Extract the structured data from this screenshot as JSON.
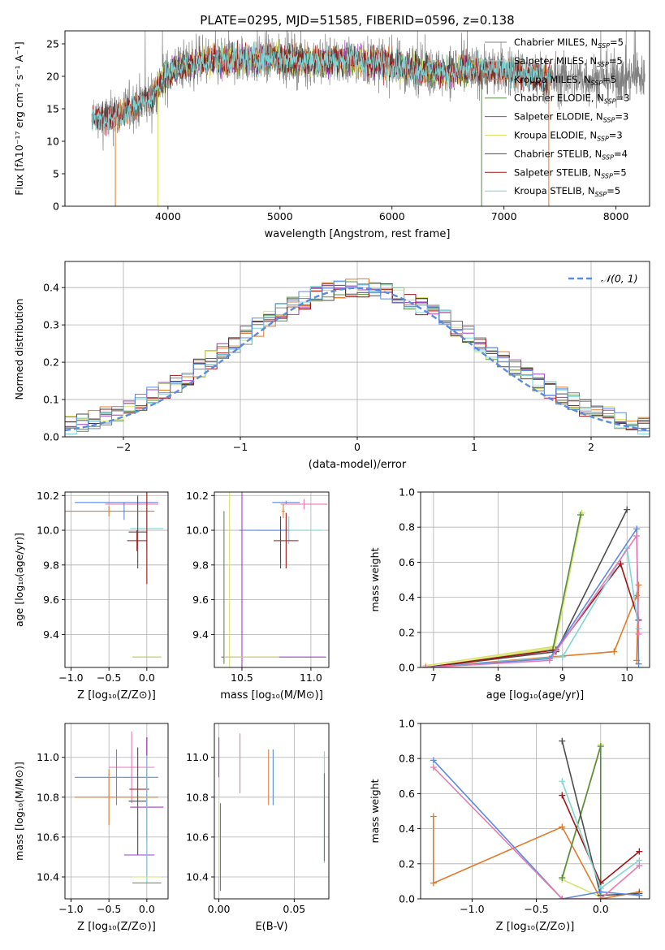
{
  "colors": {
    "chabrier_miles": "#808080",
    "salpeter_miles": "#c2c2c2",
    "kroupa_miles": "#e07b2b",
    "chabrier_elodie": "#5a8a4a",
    "salpeter_elodie": "#a23cc7",
    "kroupa_elodie": "#d7e36a",
    "chabrier_stelib": "#4d4d4d",
    "salpeter_stelib": "#a01515",
    "kroupa_stelib": "#7fd6d6",
    "blue": "#5b8bdf",
    "pink": "#e77ab5",
    "normal": "#5b8bdf"
  },
  "chart_data": [
    {
      "id": "spectrum",
      "type": "line",
      "title": "PLATE=0295, MJD=51585, FIBERID=0596, z=0.138",
      "xlabel": "wavelength [Angstrom, rest frame]",
      "ylabel": "Flux [fλ10⁻¹⁷ erg cm⁻² s⁻¹ A⁻¹]",
      "xlim": [
        3080,
        8300
      ],
      "ylim": [
        0,
        27
      ],
      "xticks": [
        "4000",
        "5000",
        "6000",
        "7000",
        "8000"
      ],
      "yticks": [
        "0",
        "5",
        "10",
        "15",
        "20",
        "25"
      ],
      "legend_position": "top-right",
      "legend": [
        {
          "label": "Chabrier MILES, N",
          "sub": "SSP",
          "tail": "=5",
          "color": "#808080"
        },
        {
          "label": "Salpeter MILES, N",
          "sub": "SSP",
          "tail": "=5",
          "color": "#c2c2c2"
        },
        {
          "label": "Kroupa MILES, N",
          "sub": "SSP",
          "tail": "=5",
          "color": "#e07b2b"
        },
        {
          "label": "Chabrier ELODIE, N",
          "sub": "SSP",
          "tail": "=3",
          "color": "#5a8a4a"
        },
        {
          "label": "Salpeter ELODIE, N",
          "sub": "SSP",
          "tail": "=3",
          "color": "#a23cc7"
        },
        {
          "label": "Kroupa ELODIE, N",
          "sub": "SSP",
          "tail": "=3",
          "color": "#d7e36a"
        },
        {
          "label": "Chabrier STELIB, N",
          "sub": "SSP",
          "tail": "=4",
          "color": "#4d4d4d"
        },
        {
          "label": "Salpeter STELIB, N",
          "sub": "SSP",
          "tail": "=5",
          "color": "#a01515"
        },
        {
          "label": "Kroupa STELIB, N",
          "sub": "SSP",
          "tail": "=5",
          "color": "#7fd6d6"
        }
      ],
      "continuum": [
        [
          3320,
          13.5
        ],
        [
          3500,
          13.6
        ],
        [
          3700,
          15.5
        ],
        [
          3850,
          16.5
        ],
        [
          3950,
          19.5
        ],
        [
          4100,
          21.5
        ],
        [
          4300,
          22.3
        ],
        [
          4600,
          22.6
        ],
        [
          5000,
          22.8
        ],
        [
          5300,
          22.3
        ],
        [
          5600,
          22.6
        ],
        [
          5800,
          22.1
        ],
        [
          6000,
          21.8
        ],
        [
          6200,
          21.2
        ],
        [
          6400,
          20.6
        ],
        [
          6600,
          20.9
        ],
        [
          6800,
          21.0
        ],
        [
          7000,
          20.8
        ],
        [
          7200,
          20.2
        ],
        [
          7400,
          19.5
        ],
        [
          7600,
          19.7
        ],
        [
          7800,
          19.6
        ],
        [
          8050,
          19.8
        ],
        [
          8200,
          19.9
        ]
      ],
      "data_lines": [
        {
          "color": "#808080",
          "x_range": [
            3350,
            8260
          ]
        },
        {
          "color": "#e07b2b",
          "x_range": [
            3530,
            7420
          ]
        },
        {
          "color": "#5a8a4a",
          "x_range": [
            3900,
            6790
          ]
        },
        {
          "color": "#a23cc7",
          "x_range": [
            3900,
            6790
          ]
        },
        {
          "color": "#d7e36a",
          "x_range": [
            3900,
            6790
          ]
        },
        {
          "color": "#4d4d4d",
          "x_range": [
            3320,
            7420
          ]
        },
        {
          "color": "#a01515",
          "x_range": [
            3320,
            7420
          ]
        },
        {
          "color": "#7fd6d6",
          "x_range": [
            3320,
            7420
          ]
        }
      ],
      "model_drops": [
        {
          "x": 3530,
          "color": "#e07b2b"
        },
        {
          "x": 3910,
          "color": "#d7e36a"
        },
        {
          "x": 6800,
          "color": "#5a8a4a"
        },
        {
          "x": 7400,
          "color": "#e07b2b"
        }
      ]
    },
    {
      "id": "residuals",
      "type": "histogram",
      "xlabel": "(data-model)/error",
      "ylabel": "Normed distribution",
      "xlim": [
        -2.5,
        2.5
      ],
      "ylim": [
        0,
        0.47
      ],
      "xticks": [
        "−2",
        "−1",
        "0",
        "1",
        "2"
      ],
      "yticks": [
        "0.0",
        "0.1",
        "0.2",
        "0.3",
        "0.4"
      ],
      "bin_width": 0.1,
      "legend_position": "top-right",
      "legend": [
        {
          "label": "𝒩(0, 1)",
          "color": "#5b8bdf"
        }
      ],
      "series_colors": [
        "#808080",
        "#e07b2b",
        "#5a8a4a",
        "#a23cc7",
        "#d7e36a",
        "#4d4d4d",
        "#a01515",
        "#7fd6d6",
        "#5b8bdf"
      ]
    },
    {
      "id": "age_vs_z",
      "type": "errorbar",
      "xlabel": "Z [log₁₀(Z/Z⊙)]",
      "ylabel": "age  [log₁₀(age/yr)]",
      "xlim": [
        -1.08,
        0.28
      ],
      "ylim": [
        9.21,
        10.22
      ],
      "xticks": [
        "−1.0",
        "−0.5",
        "0.0"
      ],
      "yticks": [
        "9.4",
        "9.6",
        "9.8",
        "10.0",
        "10.2"
      ],
      "points": [
        {
          "x": -0.4,
          "y": 10.16,
          "xerr": 0.55,
          "yerr": 0.0,
          "color": "#5b8bdf"
        },
        {
          "x": -0.2,
          "y": 10.15,
          "xerr": 0.35,
          "yerr": 0.0,
          "color": "#e77ab5"
        },
        {
          "x": -0.5,
          "y": 10.11,
          "xerr": 0.6,
          "yerr": 0.03,
          "color": "#e07b2b"
        },
        {
          "x": -0.3,
          "y": 10.11,
          "xerr": 0.01,
          "yerr": 0.05,
          "color": "#5b8bdf"
        },
        {
          "x": 0.0,
          "y": 10.01,
          "xerr": 0.22,
          "yerr": 0.12,
          "color": "#7fd6d6"
        },
        {
          "x": -0.13,
          "y": 9.94,
          "xerr": 0.13,
          "yerr": 0.06,
          "color": "#a01515"
        },
        {
          "x": -0.12,
          "y": 9.99,
          "xerr": 0.12,
          "yerr": 0.21,
          "color": "#4d4d4d"
        },
        {
          "x": 0.0,
          "y": 10.0,
          "xerr": 0.0,
          "yerr": 0.31,
          "color": "#a01515"
        },
        {
          "x": 0.0,
          "y": 9.27,
          "xerr": 0.19,
          "yerr": 0.0,
          "color": "#5a8a4a"
        },
        {
          "x": 0.0,
          "y": 9.27,
          "xerr": 0.19,
          "yerr": 0.0,
          "color": "#d7e36a"
        }
      ]
    },
    {
      "id": "age_vs_mass",
      "type": "errorbar",
      "xlabel": "mass [log₁₀(M/M⊙)]",
      "ylabel": "",
      "xlim": [
        10.3,
        11.13
      ],
      "ylim": [
        9.21,
        10.22
      ],
      "xticks": [
        "10.5",
        "11.0"
      ],
      "yticks": [
        "9.4",
        "9.6",
        "9.8",
        "10.0",
        "10.2"
      ],
      "points": [
        {
          "x": 10.82,
          "y": 10.16,
          "xerr": 0.1,
          "yerr": 0.01,
          "color": "#5b8bdf"
        },
        {
          "x": 10.95,
          "y": 10.15,
          "xerr": 0.17,
          "yerr": 0.03,
          "color": "#e77ab5"
        },
        {
          "x": 10.8,
          "y": 10.11,
          "xerr": 0.01,
          "yerr": 0.04,
          "color": "#e07b2b"
        },
        {
          "x": 10.84,
          "y": 10.0,
          "xerr": 0.24,
          "yerr": 0.08,
          "color": "#7fd6d6"
        },
        {
          "x": 10.66,
          "y": 10.0,
          "xerr": 0.18,
          "yerr": 0.0,
          "color": "#5b8bdf"
        },
        {
          "x": 10.82,
          "y": 9.94,
          "xerr": 0.09,
          "yerr": 0.16,
          "color": "#a01515"
        },
        {
          "x": 10.78,
          "y": 9.93,
          "xerr": 0.0,
          "yerr": 0.15,
          "color": "#4d4d4d"
        },
        {
          "x": 10.41,
          "y": 9.94,
          "xerr": 0.0,
          "yerr": 0.73,
          "color": "#d7e36a"
        },
        {
          "x": 10.5,
          "y": 9.94,
          "xerr": 0.0,
          "yerr": 0.73,
          "color": "#a23cc7"
        },
        {
          "x": 10.37,
          "y": 9.67,
          "xerr": 0.0,
          "yerr": 0.44,
          "color": "#5a8a4a"
        },
        {
          "x": 10.73,
          "y": 9.27,
          "xerr": 0.38,
          "yerr": 0.0,
          "color": "#a23cc7"
        },
        {
          "x": 10.57,
          "y": 9.27,
          "xerr": 0.2,
          "yerr": 0.0,
          "color": "#d7e36a"
        }
      ]
    },
    {
      "id": "mass_weight_vs_age",
      "type": "line",
      "xlabel": "age  [log₁₀(age/yr)]",
      "ylabel": "mass weight",
      "xlim": [
        6.8,
        10.35
      ],
      "ylim": [
        0,
        1
      ],
      "xticks": [
        "7",
        "8",
        "9",
        "10"
      ],
      "yticks": [
        "0.0",
        "0.2",
        "0.4",
        "0.6",
        "0.8",
        "1.0"
      ],
      "series": [
        {
          "name": "",
          "color": "#e07b2b",
          "x": [
            6.88,
            9.8,
            10.15,
            10.18,
            10.15
          ],
          "y": [
            0.0,
            0.09,
            0.41,
            0.47,
            0.04
          ]
        },
        {
          "name": "",
          "color": "#d7e36a",
          "x": [
            6.88,
            8.85,
            9.3,
            8.88,
            6.88
          ],
          "y": [
            0.0,
            0.11,
            0.88,
            0.12,
            0.01
          ]
        },
        {
          "name": "",
          "color": "#5a8a4a",
          "x": [
            6.88,
            8.85,
            9.28
          ],
          "y": [
            0.0,
            0.1,
            0.87
          ]
        },
        {
          "name": "",
          "color": "#4d4d4d",
          "x": [
            6.88,
            8.9,
            10.0
          ],
          "y": [
            0.0,
            0.09,
            0.9
          ]
        },
        {
          "name": "",
          "color": "#a01515",
          "x": [
            6.88,
            8.9,
            9.9,
            10.18
          ],
          "y": [
            0.0,
            0.1,
            0.59,
            0.27
          ]
        },
        {
          "name": "",
          "color": "#7fd6d6",
          "x": [
            6.88,
            9.0,
            10.0,
            10.18
          ],
          "y": [
            0.0,
            0.06,
            0.68,
            0.22
          ]
        },
        {
          "name": "",
          "color": "#5b8bdf",
          "x": [
            6.88,
            8.8,
            10.15,
            10.18
          ],
          "y": [
            0.0,
            0.05,
            0.79,
            0.02
          ]
        },
        {
          "name": "",
          "color": "#e77ab5",
          "x": [
            6.88,
            8.8,
            10.15,
            10.18
          ],
          "y": [
            0.0,
            0.04,
            0.75,
            0.19
          ]
        }
      ]
    },
    {
      "id": "mass_vs_z",
      "type": "errorbar",
      "xlabel": "Z [log₁₀(Z/Z⊙)]",
      "ylabel": "mass [log₁₀(M/M⊙)]",
      "xlim": [
        -1.08,
        0.28
      ],
      "ylim": [
        10.29,
        11.17
      ],
      "xticks": [
        "−1.0",
        "−0.5",
        "0.0"
      ],
      "yticks": [
        "10.4",
        "10.6",
        "10.8",
        "11.0"
      ],
      "points": [
        {
          "x": -0.2,
          "y": 10.95,
          "xerr": 0.3,
          "yerr": 0.18,
          "color": "#e77ab5"
        },
        {
          "x": -0.4,
          "y": 10.9,
          "xerr": 0.55,
          "yerr": 0.14,
          "color": "#5b8bdf"
        },
        {
          "x": -0.5,
          "y": 10.8,
          "xerr": 0.0,
          "yerr": 0.14,
          "color": "#e07b2b"
        },
        {
          "x": -0.4,
          "y": 10.8,
          "xerr": 0.55,
          "yerr": 0.0,
          "color": "#e07b2b"
        },
        {
          "x": -0.1,
          "y": 10.84,
          "xerr": 0.13,
          "yerr": 0.0,
          "color": "#a01515"
        },
        {
          "x": 0.0,
          "y": 10.84,
          "xerr": 0.0,
          "yerr": 0.26,
          "color": "#a01515"
        },
        {
          "x": -0.12,
          "y": 10.78,
          "xerr": 0.12,
          "yerr": 0.27,
          "color": "#4d4d4d"
        },
        {
          "x": 0.0,
          "y": 10.75,
          "xerr": 0.22,
          "yerr": 0.35,
          "color": "#a23cc7"
        },
        {
          "x": -0.1,
          "y": 10.51,
          "xerr": 0.2,
          "yerr": 0.0,
          "color": "#a23cc7"
        },
        {
          "x": 0.0,
          "y": 10.69,
          "xerr": 0.0,
          "yerr": 0.32,
          "color": "#7fd6d6"
        },
        {
          "x": 0.0,
          "y": 10.4,
          "xerr": 0.19,
          "yerr": 0.0,
          "color": "#d7e36a"
        },
        {
          "x": 0.0,
          "y": 10.37,
          "xerr": 0.19,
          "yerr": 0.0,
          "color": "#5a8a4a"
        }
      ]
    },
    {
      "id": "mass_vs_ebv",
      "type": "errorbar",
      "xlabel": "E(B-V)",
      "ylabel": "",
      "xlim": [
        -0.003,
        0.073
      ],
      "ylim": [
        10.29,
        11.17
      ],
      "xticks": [
        "0.00",
        "0.05"
      ],
      "yticks": [
        "10.4",
        "10.6",
        "10.8",
        "11.0"
      ],
      "points": [
        {
          "x": 0.0,
          "y": 10.95,
          "xerr": 0.0,
          "yerr": 0.15,
          "color": "#a23cc7"
        },
        {
          "x": 0.014,
          "y": 10.97,
          "xerr": 0.0,
          "yerr": 0.15,
          "color": "#e77ab5"
        },
        {
          "x": 0.033,
          "y": 10.9,
          "xerr": 0.0,
          "yerr": 0.14,
          "color": "#e07b2b"
        },
        {
          "x": 0.036,
          "y": 10.9,
          "xerr": 0.0,
          "yerr": 0.14,
          "color": "#5b8bdf"
        },
        {
          "x": 0.0,
          "y": 10.65,
          "xerr": 0.0,
          "yerr": 0.25,
          "color": "#d7e36a"
        },
        {
          "x": 0.001,
          "y": 10.55,
          "xerr": 0.0,
          "yerr": 0.22,
          "color": "#5a8a4a"
        },
        {
          "x": 0.07,
          "y": 10.75,
          "xerr": 0.0,
          "yerr": 0.28,
          "color": "#7fd6d6"
        },
        {
          "x": 0.07,
          "y": 10.7,
          "xerr": 0.0,
          "yerr": 0.22,
          "color": "#5a8a4a"
        }
      ]
    },
    {
      "id": "mass_weight_vs_z",
      "type": "line",
      "xlabel": "Z [log₁₀(Z/Z⊙)]",
      "ylabel": "mass weight",
      "xlim": [
        -1.4,
        0.38
      ],
      "ylim": [
        0,
        1
      ],
      "xticks": [
        "−1.0",
        "−0.5",
        "0.0"
      ],
      "yticks": [
        "0.0",
        "0.2",
        "0.4",
        "0.6",
        "0.8",
        "1.0"
      ],
      "series": [
        {
          "name": "",
          "color": "#e07b2b",
          "x": [
            -1.3,
            -1.3,
            -0.3,
            0.0,
            0.3
          ],
          "y": [
            0.47,
            0.09,
            0.41,
            0.0,
            0.04
          ]
        },
        {
          "name": "",
          "color": "#d7e36a",
          "x": [
            -0.3,
            0.0,
            -0.3,
            0.0
          ],
          "y": [
            0.12,
            0.88,
            0.11,
            0.01
          ]
        },
        {
          "name": "",
          "color": "#5a8a4a",
          "x": [
            -0.3,
            0.0,
            0.0
          ],
          "y": [
            0.12,
            0.87,
            0.02
          ]
        },
        {
          "name": "",
          "color": "#4d4d4d",
          "x": [
            -0.3,
            0.0,
            0.3
          ],
          "y": [
            0.9,
            0.02,
            0.03
          ]
        },
        {
          "name": "",
          "color": "#a01515",
          "x": [
            -0.3,
            0.0,
            0.3
          ],
          "y": [
            0.59,
            0.09,
            0.27
          ]
        },
        {
          "name": "",
          "color": "#7fd6d6",
          "x": [
            -0.3,
            0.0,
            0.3
          ],
          "y": [
            0.67,
            0.06,
            0.22
          ]
        },
        {
          "name": "",
          "color": "#5b8bdf",
          "x": [
            -1.3,
            -0.3,
            0.0,
            0.3
          ],
          "y": [
            0.79,
            0.0,
            0.04,
            0.02
          ]
        },
        {
          "name": "",
          "color": "#e77ab5",
          "x": [
            -1.3,
            -0.3,
            0.0,
            0.3
          ],
          "y": [
            0.75,
            0.0,
            0.0,
            0.19
          ]
        }
      ]
    }
  ]
}
